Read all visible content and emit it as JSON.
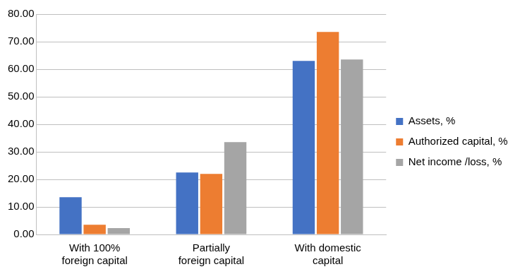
{
  "chart_data": {
    "type": "bar",
    "categories": [
      "With 100% foreign capital",
      "Partially foreign capital",
      "With domestic capital"
    ],
    "series": [
      {
        "name": "Assets, %",
        "color": "#4472c4",
        "values": [
          13.5,
          22.5,
          63
        ]
      },
      {
        "name": "Authorized capital, %",
        "color": "#ed7d31",
        "values": [
          3.5,
          22,
          73.5
        ]
      },
      {
        "name": "Net income /loss, %",
        "color": "#a5a5a5",
        "values": [
          2.3,
          33.5,
          63.5
        ]
      }
    ],
    "ylim": [
      0,
      80
    ],
    "yticks": [
      {
        "value": 0,
        "label": "0.00"
      },
      {
        "value": 10,
        "label": "10.00"
      },
      {
        "value": 20,
        "label": "20.00"
      },
      {
        "value": 30,
        "label": "30.00"
      },
      {
        "value": 40,
        "label": "40.00"
      },
      {
        "value": 50,
        "label": "50.00"
      },
      {
        "value": 60,
        "label": "60.00"
      },
      {
        "value": 70,
        "label": "70.00"
      },
      {
        "value": 80,
        "label": "80.00"
      }
    ],
    "grid": true,
    "legend": "right"
  }
}
